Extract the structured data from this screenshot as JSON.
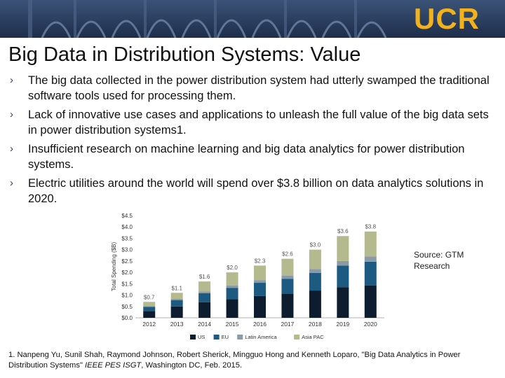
{
  "banner": {
    "logo": "UCR",
    "colors": {
      "background": "#26395a",
      "logo": "#f2b21d"
    }
  },
  "slide": {
    "title": "Big Data in Distribution Systems: Value",
    "bullet_icon": "chevron-right-icon",
    "bullets": [
      "The big data collected in the power distribution system had utterly swamped the traditional software tools used for processing them.",
      "Lack of innovative use cases and applications to unleash the full value of the big data sets in power distribution systems1.",
      "Insufficient research on machine learning and big data analytics for power distribution systems.",
      "Electric utilities around the world will spend over $3.8 billion on data analytics solutions in 2020."
    ],
    "source": "Source: GTM Research",
    "footnote_plain": "1. Nanpeng Yu, Sunil Shah, Raymond Johnson, Robert Sherick, Mingguo Hong and Kenneth Loparo, \"Big Data Analytics in Power Distribution Systems\" ",
    "footnote_italic": "IEEE PES ISGT",
    "footnote_end": ", Washington DC, Feb. 2015."
  },
  "chart_data": {
    "type": "bar",
    "stacked": true,
    "title": "",
    "xlabel": "",
    "ylabel": "Total Spending ($B)",
    "ylim": [
      0,
      4.5
    ],
    "yticks": [
      "$0.0",
      "$0.5",
      "$1.0",
      "$1.5",
      "$2.0",
      "$2.5",
      "$3.0",
      "$3.5",
      "$4.0",
      "$4.5"
    ],
    "categories": [
      "2012",
      "2013",
      "2014",
      "2015",
      "2016",
      "2017",
      "2018",
      "2019",
      "2020"
    ],
    "totals_labels": [
      "$0.7",
      "$1.1",
      "$1.6",
      "$2.0",
      "$2.3",
      "$2.6",
      "$3.0",
      "$3.6",
      "$3.8"
    ],
    "totals": [
      0.7,
      1.1,
      1.6,
      2.0,
      2.3,
      2.6,
      3.0,
      3.6,
      3.8
    ],
    "series": [
      {
        "name": "US",
        "color": "#0d1c2e",
        "values": [
          0.3,
          0.5,
          0.68,
          0.82,
          0.96,
          1.06,
          1.2,
          1.35,
          1.42
        ]
      },
      {
        "name": "EU",
        "color": "#1d5a82",
        "values": [
          0.18,
          0.28,
          0.4,
          0.5,
          0.58,
          0.66,
          0.78,
          0.95,
          1.05
        ]
      },
      {
        "name": "Latin America",
        "color": "#8a9ba7",
        "values": [
          0.04,
          0.06,
          0.08,
          0.1,
          0.12,
          0.14,
          0.17,
          0.2,
          0.23
        ]
      },
      {
        "name": "Asia PAC",
        "color": "#b4b98e",
        "values": [
          0.18,
          0.26,
          0.44,
          0.58,
          0.64,
          0.74,
          0.85,
          1.1,
          1.1
        ]
      }
    ],
    "legend": "bottom",
    "grid": false
  }
}
